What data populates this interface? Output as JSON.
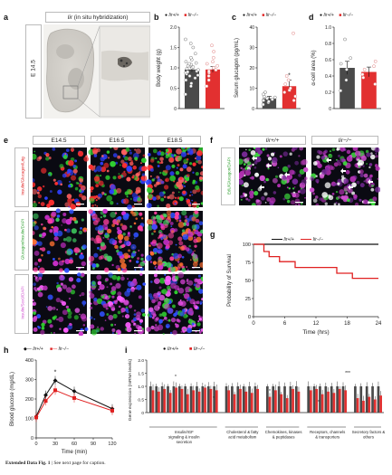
{
  "panels": {
    "a": {
      "label": "a",
      "title_gene": "Iir",
      "title_rest": " (in situ hybridization)",
      "stage": "E 14.5"
    },
    "b": {
      "label": "b",
      "legend": [
        "Iir+/+",
        "Iir−/−"
      ],
      "chart_data": {
        "type": "bar",
        "ylabel": "Body weight (g)",
        "ylim": [
          0,
          2.0
        ],
        "yticks": [
          "0",
          "0.5",
          "1.0",
          "1.5",
          "2.0"
        ],
        "series": [
          {
            "name": "Iir+/+",
            "mean": 0.96,
            "error": 0.06,
            "points": [
              0.35,
              0.55,
              0.62,
              0.7,
              0.75,
              0.8,
              0.82,
              0.85,
              0.88,
              0.9,
              0.92,
              0.95,
              0.98,
              1.0,
              1.02,
              1.05,
              1.08,
              1.1,
              1.12,
              1.15,
              1.2,
              1.25,
              1.35,
              1.5,
              1.6,
              1.7
            ]
          },
          {
            "name": "Iir−/−",
            "mean": 0.96,
            "error": 0.07,
            "points": [
              0.55,
              0.7,
              0.8,
              0.88,
              0.92,
              0.95,
              1.0,
              1.05,
              1.1,
              1.15,
              1.25,
              1.4,
              1.55
            ]
          }
        ]
      }
    },
    "c": {
      "label": "c",
      "legend": [
        "Iir+/+",
        "Iir−/−"
      ],
      "chart_data": {
        "type": "bar",
        "ylabel": "Serum glucagon (pg/mL)",
        "ylim": [
          0,
          40
        ],
        "yticks": [
          "0",
          "10",
          "20",
          "30",
          "40"
        ],
        "annotation": "*",
        "series": [
          {
            "name": "Iir+/+",
            "mean": 5,
            "error": 1,
            "points": [
              2,
              3,
              3.5,
              4,
              4.5,
              5,
              5.5,
              6,
              7,
              8
            ]
          },
          {
            "name": "Iir−/−",
            "mean": 11,
            "error": 3,
            "points": [
              4,
              6,
              8,
              9,
              10,
              12,
              14,
              16,
              37
            ]
          }
        ]
      }
    },
    "d": {
      "label": "d",
      "legend": [
        "Iir+/+",
        "Iir−/−"
      ],
      "chart_data": {
        "type": "bar",
        "ylabel": "α-cell area (%)",
        "ylim": [
          0,
          1.0
        ],
        "yticks": [
          "0",
          "0.2",
          "0.4",
          "0.6",
          "0.8",
          "1.0"
        ],
        "series": [
          {
            "name": "Iir+/+",
            "mean": 0.5,
            "error": 0.08,
            "points": [
              0.22,
              0.35,
              0.48,
              0.55,
              0.62,
              0.85
            ]
          },
          {
            "name": "Iir−/−",
            "mean": 0.45,
            "error": 0.06,
            "points": [
              0.3,
              0.38,
              0.42,
              0.48,
              0.52,
              0.58
            ]
          }
        ]
      }
    },
    "e": {
      "label": "e",
      "columns": [
        "E14.5",
        "E16.5",
        "E18.5"
      ],
      "row_labels": [
        "Insulin/Glucagon/Lrig",
        "Glucagon/Insulin/DAPI",
        "Insulin/Sox9/DAPI"
      ]
    },
    "f": {
      "label": "f",
      "columns": [
        "Iir+/+",
        "Iir−/−"
      ],
      "row_label": "EdU/Glucagon/DAPI"
    },
    "g": {
      "label": "g",
      "legend": [
        "Iir+/+",
        "Iir−/−"
      ],
      "chart_data": {
        "type": "line",
        "xlabel": "Time (hrs)",
        "ylabel": "Probability of Survival",
        "xlim": [
          0,
          24
        ],
        "ylim": [
          0,
          100
        ],
        "xticks": [
          "0",
          "6",
          "12",
          "18",
          "24"
        ],
        "yticks": [
          "0",
          "25",
          "50",
          "75",
          "100"
        ],
        "series": [
          {
            "name": "Iir+/+",
            "x": [
              0,
              24
            ],
            "y": [
              100,
              100
            ]
          },
          {
            "name": "Iir−/−",
            "x": [
              0,
              2,
              2,
              3,
              3,
              5,
              5,
              8,
              8,
              16,
              16,
              19,
              19,
              24
            ],
            "y": [
              100,
              100,
              90,
              90,
              83,
              83,
              76,
              76,
              68,
              68,
              60,
              60,
              53,
              53
            ]
          }
        ]
      }
    },
    "h": {
      "label": "h",
      "legend": [
        "Iir+/+",
        "Iir−/−"
      ],
      "chart_data": {
        "type": "line",
        "xlabel": "Time (min)",
        "ylabel": "Blood glucose (mg/dL)",
        "xlim": [
          0,
          120
        ],
        "ylim": [
          0,
          400
        ],
        "xticks": [
          "0",
          "30",
          "60",
          "90",
          "120"
        ],
        "yticks": [
          "0",
          "100",
          "200",
          "300",
          "400"
        ],
        "annotation": "*",
        "series": [
          {
            "name": "Iir+/+",
            "x": [
              0,
              15,
              30,
              60,
              120
            ],
            "y": [
              110,
              220,
              295,
              240,
              150
            ]
          },
          {
            "name": "Iir−/−",
            "x": [
              0,
              15,
              30,
              60,
              120
            ],
            "y": [
              105,
              190,
              245,
              205,
              140
            ]
          }
        ]
      }
    },
    "i": {
      "label": "i",
      "legend": [
        "Iir+/+",
        "Iir−/−"
      ],
      "chart_data": {
        "type": "bar",
        "ylabel": "Gene expression (mRNA levels)",
        "ylim": [
          0,
          2.0
        ],
        "yticks": [
          "0",
          "0.5",
          "1.0",
          "1.5",
          "2.0"
        ],
        "groups": [
          {
            "label": "Insulin/IGF signaling & insulin secretion",
            "wt": [
              1.0,
              1.0,
              1.0,
              1.0,
              1.0,
              1.0,
              1.0,
              1.0,
              1.0,
              1.0,
              1.0,
              1.0
            ],
            "ko": [
              0.85,
              0.8,
              0.9,
              0.75,
              0.95,
              0.9,
              0.7,
              0.85,
              0.8,
              0.95,
              0.9,
              0.85
            ]
          },
          {
            "label": "Cholesterol & fatty acid metabolism",
            "wt": [
              1.0,
              1.0,
              1.0,
              1.0,
              1.0,
              1.0
            ],
            "ko": [
              0.85,
              0.7,
              0.9,
              0.8,
              0.75,
              0.9
            ]
          },
          {
            "label": "Chemokines, kinases & peptidases",
            "wt": [
              1.0,
              1.0,
              1.0,
              1.0,
              1.0,
              1.0
            ],
            "ko": [
              0.6,
              0.85,
              0.7,
              0.55,
              0.9,
              0.8
            ]
          },
          {
            "label": "Receptors, channels & transporters",
            "wt": [
              1.0,
              1.0,
              1.0,
              1.0,
              1.0,
              1.0,
              1.0
            ],
            "ko": [
              0.85,
              0.9,
              0.7,
              0.8,
              0.75,
              0.9,
              0.85
            ]
          },
          {
            "label": "Secretory factors & others",
            "wt": [
              1.0,
              1.0,
              1.0,
              1.0,
              1.0
            ],
            "ko": [
              0.55,
              0.45,
              0.6,
              0.5,
              0.65
            ]
          }
        ]
      }
    }
  },
  "caption": {
    "bold": "Extended Data Fig. 1",
    "text": " | See next page for caption."
  },
  "colors": {
    "wt": "#111111",
    "ko": "#e02020",
    "bar_wt": "#4a4a4a",
    "bar_ko": "#e23030",
    "frame": "#c8c8c8"
  }
}
